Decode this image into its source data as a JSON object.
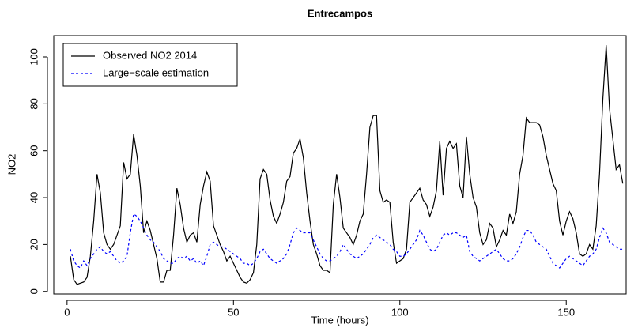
{
  "chart_data": {
    "type": "line",
    "title": "Entrecampos",
    "x_label": "Time (hours)",
    "y_label": "NO2",
    "x": [
      1,
      2,
      3,
      4,
      5,
      6,
      7,
      8,
      9,
      10,
      11,
      12,
      13,
      14,
      15,
      16,
      17,
      18,
      19,
      20,
      21,
      22,
      23,
      24,
      25,
      26,
      27,
      28,
      29,
      30,
      31,
      32,
      33,
      34,
      35,
      36,
      37,
      38,
      39,
      40,
      41,
      42,
      43,
      44,
      45,
      46,
      47,
      48,
      49,
      50,
      51,
      52,
      53,
      54,
      55,
      56,
      57,
      58,
      59,
      60,
      61,
      62,
      63,
      64,
      65,
      66,
      67,
      68,
      69,
      70,
      71,
      72,
      73,
      74,
      75,
      76,
      77,
      78,
      79,
      80,
      81,
      82,
      83,
      84,
      85,
      86,
      87,
      88,
      89,
      90,
      91,
      92,
      93,
      94,
      95,
      96,
      97,
      98,
      99,
      100,
      101,
      102,
      103,
      104,
      105,
      106,
      107,
      108,
      109,
      110,
      111,
      112,
      113,
      114,
      115,
      116,
      117,
      118,
      119,
      120,
      121,
      122,
      123,
      124,
      125,
      126,
      127,
      128,
      129,
      130,
      131,
      132,
      133,
      134,
      135,
      136,
      137,
      138,
      139,
      140,
      141,
      142,
      143,
      144,
      145,
      146,
      147,
      148,
      149,
      150,
      151,
      152,
      153,
      154,
      155,
      156,
      157,
      158,
      159,
      160,
      161,
      162,
      163,
      164,
      165,
      166,
      167
    ],
    "series": [
      {
        "name": "Observed NO2 2014",
        "color": "#000000",
        "linestyle": "solid",
        "values": [
          15,
          5,
          3,
          3.5,
          4,
          6,
          15,
          30,
          50,
          42,
          25,
          20,
          18,
          20,
          24,
          28,
          55,
          48,
          50,
          67,
          58,
          45,
          25,
          30,
          26,
          20,
          14,
          4,
          4,
          9,
          9,
          24,
          44,
          37,
          27,
          21,
          24,
          25,
          21,
          37,
          45,
          51,
          47,
          28,
          24,
          20,
          17,
          13,
          15,
          12,
          9,
          6,
          4,
          3.5,
          5,
          8,
          20,
          48,
          52,
          50,
          39,
          32,
          29,
          33,
          38,
          47,
          49,
          59,
          61,
          65,
          57,
          42,
          30,
          20,
          16,
          11,
          9,
          9,
          8,
          37,
          50,
          40,
          27,
          25,
          23,
          20,
          24,
          30,
          33,
          50,
          70,
          75,
          75,
          43,
          38,
          39,
          38,
          21,
          12,
          13,
          14,
          18,
          38,
          40,
          42,
          44,
          39,
          37,
          32,
          36,
          43,
          64,
          41,
          61,
          64,
          61,
          63,
          45,
          40,
          66,
          50,
          40,
          36,
          25,
          20,
          22,
          29,
          27,
          19,
          22,
          26,
          24,
          33,
          29,
          34,
          50,
          58,
          74,
          72,
          72,
          72,
          71,
          66,
          58,
          52,
          46,
          43,
          30,
          24,
          30,
          34,
          31,
          25,
          16,
          15,
          16,
          20,
          18,
          28,
          50,
          82,
          105,
          78,
          65,
          52,
          54,
          46
        ]
      },
      {
        "name": "Large−scale estimation",
        "color": "#0000ff",
        "linestyle": "dashed",
        "values": [
          18,
          13,
          11,
          10,
          13,
          11,
          14,
          16,
          18,
          19,
          17,
          16,
          17,
          15,
          13,
          12,
          13,
          15,
          25,
          33,
          32,
          30,
          27,
          24,
          22,
          21,
          19,
          17,
          14,
          13,
          12,
          12,
          14,
          15,
          14,
          15,
          13,
          14,
          12,
          13,
          11,
          15,
          20,
          21,
          20,
          19,
          19,
          18,
          17,
          16,
          15,
          14,
          12,
          12,
          11,
          12,
          14,
          17,
          18,
          16,
          14,
          13,
          12,
          13,
          14,
          16,
          20,
          25,
          27,
          26,
          25,
          25,
          25,
          22,
          19,
          16,
          14,
          13,
          13,
          14,
          15,
          17,
          20,
          18,
          16,
          15,
          14,
          15,
          16,
          18,
          20,
          23,
          24,
          23,
          22,
          21,
          20,
          18,
          17,
          15,
          15,
          16,
          18,
          20,
          22,
          26,
          24,
          21,
          18,
          17,
          18,
          21,
          24,
          25,
          24,
          25,
          25,
          24,
          23,
          24,
          17,
          15,
          14,
          13,
          14,
          15,
          16,
          17,
          18,
          16,
          14,
          13,
          13,
          14,
          16,
          19,
          23,
          26,
          26,
          24,
          21,
          20,
          19,
          18,
          15,
          12,
          11,
          10,
          12,
          14,
          15,
          14,
          13,
          12,
          11,
          13,
          15,
          16,
          18,
          23,
          27,
          25,
          21,
          20,
          19,
          18,
          18
        ]
      }
    ],
    "xlim": [
      -4,
      168
    ],
    "ylim": [
      -1.1,
      109.1
    ],
    "xticks": [
      0,
      50,
      100,
      150
    ],
    "yticks": [
      0,
      20,
      40,
      60,
      80,
      100
    ],
    "legend": "top-left"
  }
}
